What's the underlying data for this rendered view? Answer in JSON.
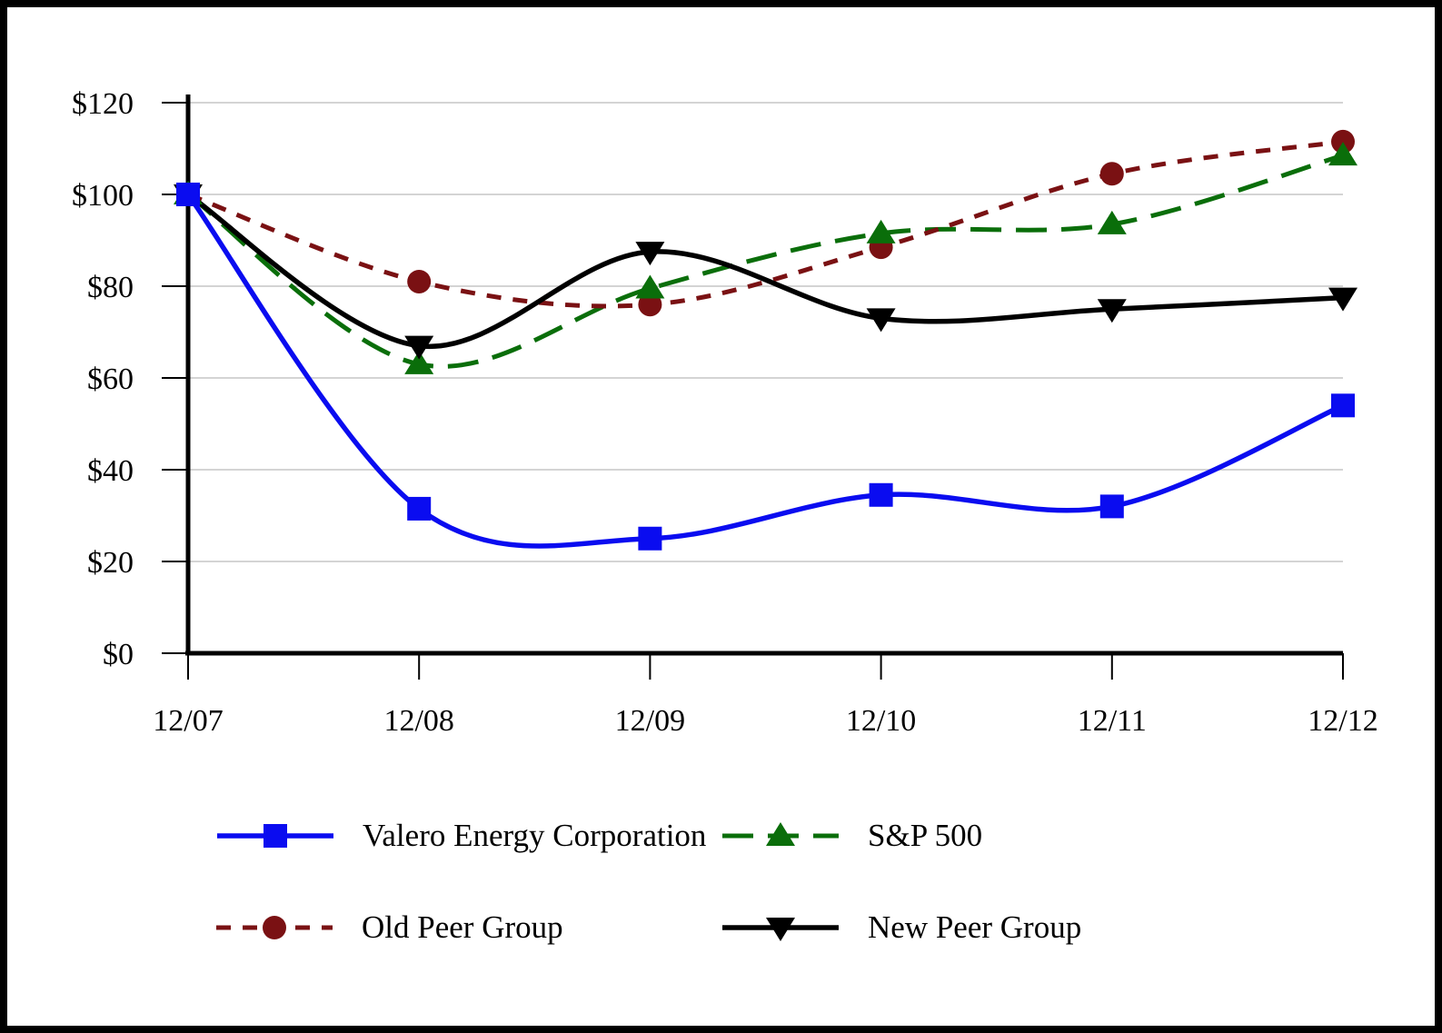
{
  "chart_data": {
    "type": "line",
    "title": "",
    "xlabel": "",
    "ylabel": "",
    "x_labels": [
      "12/07",
      "12/08",
      "12/09",
      "12/10",
      "12/11",
      "12/12"
    ],
    "y_tick_labels": [
      "$0",
      "$20",
      "$40",
      "$60",
      "$80",
      "$100",
      "$120"
    ],
    "y_tick_values": [
      0,
      20,
      40,
      60,
      80,
      100,
      120
    ],
    "ylim": [
      0,
      120
    ],
    "grid": true,
    "legend_position": "bottom",
    "line_smoothing": true,
    "series": [
      {
        "name": "Valero Energy Corporation",
        "color": "#0a0cf0",
        "marker": "square",
        "dash": "",
        "width": 5.5,
        "values": [
          100,
          31.5,
          25,
          34.5,
          32,
          54
        ]
      },
      {
        "name": "S&P 500",
        "color": "#0a6e0a",
        "marker": "triangle-up",
        "dash": "34 16",
        "width": 5,
        "values": [
          100,
          63,
          79.5,
          91.5,
          93.5,
          108.5
        ]
      },
      {
        "name": "Old Peer Group",
        "color": "#7a1113",
        "marker": "circle",
        "dash": "16 13",
        "width": 5,
        "values": [
          100,
          81,
          76,
          88.5,
          104.5,
          111.5
        ]
      },
      {
        "name": "New Peer Group",
        "color": "#000000",
        "marker": "triangle-down",
        "dash": "",
        "width": 5.5,
        "values": [
          100,
          67,
          87.5,
          73,
          75,
          77.5
        ]
      }
    ],
    "axis_color": "#000000",
    "gridline_color": "#c6c6c6"
  }
}
